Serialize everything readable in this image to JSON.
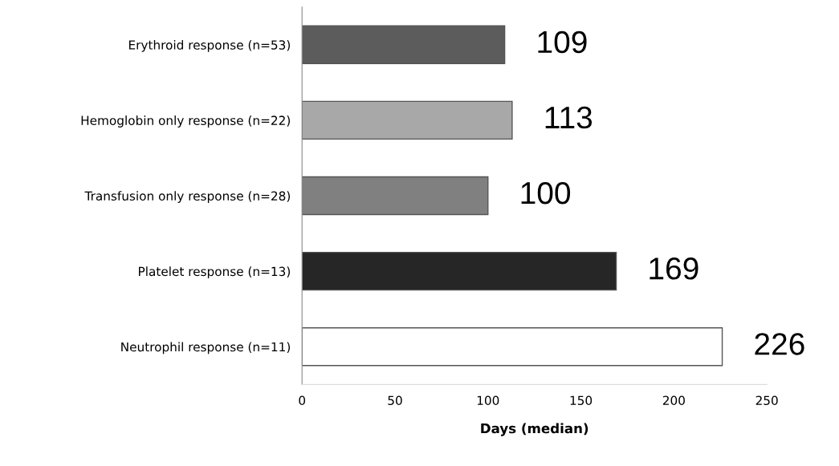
{
  "chart_data": {
    "type": "bar",
    "orientation": "horizontal",
    "xlabel": "Days (median)",
    "categories": [
      "Erythroid response (n=53)",
      "Hemoglobin only response (n=22)",
      "Transfusion only response (n=28)",
      "Platelet response (n=13)",
      "Neutrophil response (n=11)"
    ],
    "values": [
      109,
      113,
      100,
      169,
      226
    ],
    "colors": [
      "#5c5c5c",
      "#a8a8a8",
      "#808080",
      "#262626",
      "#ffffff"
    ],
    "xlim": [
      0,
      250
    ],
    "xticks": [
      0,
      50,
      100,
      150,
      200,
      250
    ],
    "data_labels": true,
    "grid": false,
    "legend": false
  }
}
